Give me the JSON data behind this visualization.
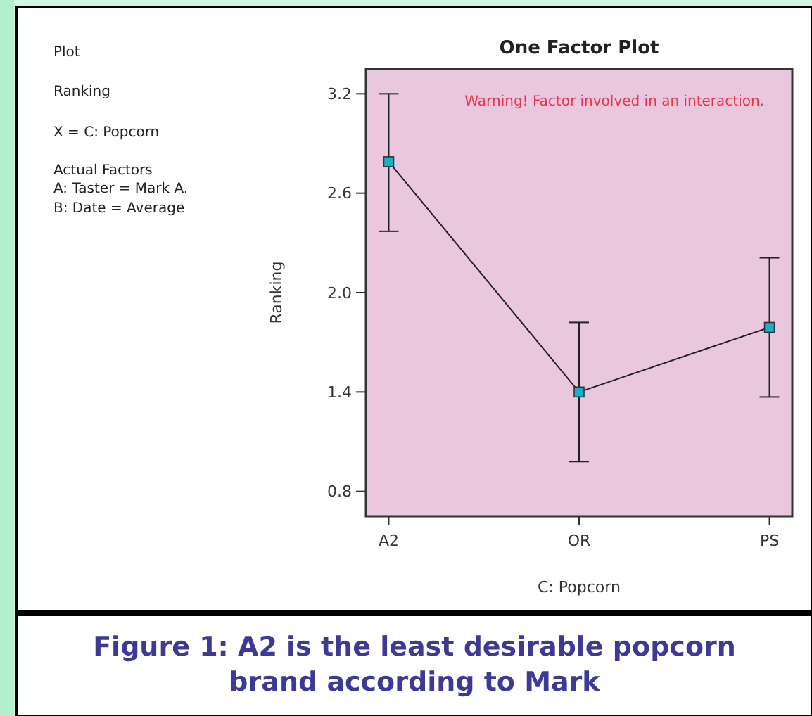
{
  "chart_data": {
    "type": "line",
    "title": "One Factor Plot",
    "xlabel": "C: Popcorn",
    "ylabel": "Ranking",
    "categories": [
      "A2",
      "OR",
      "PS"
    ],
    "series": [
      {
        "color": "#1ab0c8",
        "values": [
          2.79,
          1.4,
          1.79
        ],
        "errors": [
          [
            2.37,
            3.2
          ],
          [
            0.98,
            1.82
          ],
          [
            1.37,
            2.21
          ]
        ]
      }
    ],
    "ylim": [
      0.65,
      3.35
    ],
    "yticks": [
      {
        "value": 0.8,
        "label": "0.8"
      },
      {
        "value": 1.4,
        "label": "1.4"
      },
      {
        "value": 2.0,
        "label": "2.0"
      },
      {
        "value": 2.6,
        "label": "2.6"
      },
      {
        "value": 3.2,
        "label": "3.2"
      }
    ],
    "grid": false,
    "marker": "square",
    "line_style": "solid",
    "annotations": [
      "Plot",
      "Ranking",
      "X = C: Popcorn",
      "Actual Factors",
      "A: Taster = Mark A.",
      "B: Date = Average",
      "Warning! Factor involved in an interaction.",
      "Figure 1: A2 is the least desirable popcorn",
      "brand according to Mark"
    ]
  }
}
